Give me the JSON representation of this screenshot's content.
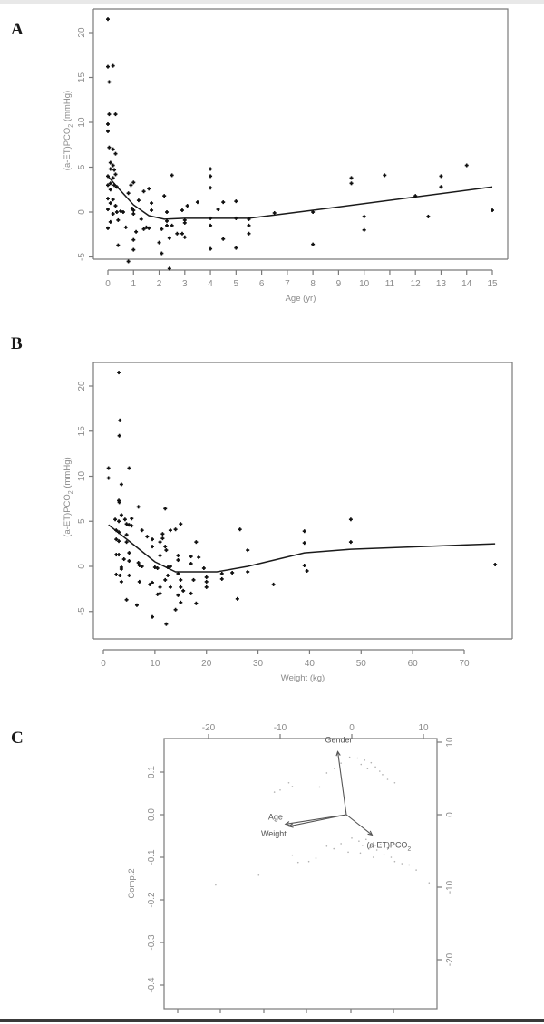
{
  "figure": {
    "panels": [
      "A",
      "B",
      "C"
    ]
  },
  "chart_data": [
    {
      "panel": "A",
      "type": "scatter",
      "xlabel": "Age (yr)",
      "ylabel": "(a-ET)PCO2 (mmHg)",
      "xlim": [
        0,
        15
      ],
      "ylim": [
        -6.5,
        21.5
      ],
      "xticks": [
        0,
        1,
        2,
        3,
        4,
        5,
        6,
        7,
        8,
        9,
        10,
        11,
        12,
        13,
        14,
        15
      ],
      "yticks": [
        -5,
        0,
        5,
        10,
        15,
        20
      ],
      "grid": false,
      "points": [
        [
          0.0,
          21.5
        ],
        [
          0.0,
          16.2
        ],
        [
          0.2,
          16.3
        ],
        [
          0.05,
          14.5
        ],
        [
          0.05,
          10.9
        ],
        [
          0.3,
          10.9
        ],
        [
          0.0,
          9.8
        ],
        [
          0.0,
          9.0
        ],
        [
          0.05,
          7.2
        ],
        [
          0.2,
          7.0
        ],
        [
          0.3,
          6.5
        ],
        [
          0.1,
          5.5
        ],
        [
          0.2,
          5.2
        ],
        [
          0.1,
          4.8
        ],
        [
          0.25,
          4.7
        ],
        [
          0.3,
          4.2
        ],
        [
          0.0,
          4.0
        ],
        [
          0.2,
          3.8
        ],
        [
          0.1,
          3.2
        ],
        [
          0.0,
          3.0
        ],
        [
          0.25,
          3.0
        ],
        [
          0.35,
          2.8
        ],
        [
          0.1,
          2.5
        ],
        [
          0.0,
          1.5
        ],
        [
          0.2,
          1.4
        ],
        [
          0.1,
          1.0
        ],
        [
          0.3,
          0.7
        ],
        [
          0.0,
          0.3
        ],
        [
          0.35,
          0.0
        ],
        [
          0.2,
          -0.2
        ],
        [
          0.5,
          0.1
        ],
        [
          0.6,
          0.0
        ],
        [
          0.4,
          -0.9
        ],
        [
          0.0,
          -1.8
        ],
        [
          0.1,
          -1.1
        ],
        [
          0.7,
          -1.7
        ],
        [
          0.4,
          -3.7
        ],
        [
          0.8,
          2.1
        ],
        [
          0.9,
          3.0
        ],
        [
          1.0,
          3.3
        ],
        [
          0.95,
          0.4
        ],
        [
          1.0,
          0.2
        ],
        [
          1.0,
          -0.2
        ],
        [
          1.1,
          -2.2
        ],
        [
          1.2,
          1.3
        ],
        [
          1.0,
          -3.1
        ],
        [
          1.0,
          -4.2
        ],
        [
          0.8,
          -5.5
        ],
        [
          1.3,
          -0.8
        ],
        [
          1.4,
          2.3
        ],
        [
          1.4,
          -1.9
        ],
        [
          1.6,
          2.6
        ],
        [
          1.7,
          1.0
        ],
        [
          1.7,
          0.2
        ],
        [
          1.6,
          -1.8
        ],
        [
          1.5,
          -1.7
        ],
        [
          2.0,
          -3.4
        ],
        [
          2.1,
          -1.9
        ],
        [
          2.1,
          -4.6
        ],
        [
          2.2,
          1.8
        ],
        [
          2.3,
          0.0
        ],
        [
          2.3,
          -1.0
        ],
        [
          2.3,
          -1.5
        ],
        [
          2.4,
          -2.9
        ],
        [
          2.4,
          -6.3
        ],
        [
          2.5,
          -1.5
        ],
        [
          2.5,
          4.1
        ],
        [
          2.7,
          -2.4
        ],
        [
          2.9,
          -2.4
        ],
        [
          2.9,
          0.2
        ],
        [
          3.0,
          -0.9
        ],
        [
          3.0,
          -1.2
        ],
        [
          3.0,
          -2.8
        ],
        [
          3.1,
          0.7
        ],
        [
          3.5,
          1.1
        ],
        [
          4.0,
          4.8
        ],
        [
          4.0,
          4.0
        ],
        [
          4.0,
          2.7
        ],
        [
          4.0,
          -0.7
        ],
        [
          4.0,
          -1.5
        ],
        [
          4.0,
          -4.1
        ],
        [
          4.3,
          0.3
        ],
        [
          4.5,
          1.1
        ],
        [
          4.5,
          -3.0
        ],
        [
          5.0,
          1.2
        ],
        [
          5.0,
          -0.7
        ],
        [
          5.0,
          -4.0
        ],
        [
          5.5,
          -0.8
        ],
        [
          5.5,
          -1.5
        ],
        [
          5.5,
          -2.4
        ],
        [
          6.5,
          -0.1
        ],
        [
          8.0,
          0.0
        ],
        [
          8.0,
          -3.6
        ],
        [
          9.5,
          3.8
        ],
        [
          9.5,
          3.2
        ],
        [
          10.0,
          -0.5
        ],
        [
          10.0,
          -2.0
        ],
        [
          10.8,
          4.1
        ],
        [
          12.0,
          1.8
        ],
        [
          12.5,
          -0.5
        ],
        [
          13.0,
          4.0
        ],
        [
          13.0,
          2.8
        ],
        [
          14.0,
          5.2
        ],
        [
          15.0,
          0.2
        ]
      ],
      "fit": [
        [
          0,
          4.0
        ],
        [
          0.3,
          3.0
        ],
        [
          1.0,
          0.8
        ],
        [
          1.6,
          -0.4
        ],
        [
          2.2,
          -0.8
        ],
        [
          3.0,
          -0.7
        ],
        [
          5.5,
          -0.7
        ],
        [
          8.0,
          0.2
        ],
        [
          15,
          2.8
        ]
      ]
    },
    {
      "panel": "B",
      "type": "scatter",
      "xlabel": "Weight (kg)",
      "ylabel": "(a-ET)PCO2 (mmHg)",
      "xlim": [
        0,
        76
      ],
      "ylim": [
        -6.5,
        21.5
      ],
      "xticks": [
        0,
        10,
        20,
        30,
        40,
        50,
        60,
        70
      ],
      "yticks": [
        -5,
        0,
        5,
        10,
        15,
        20
      ],
      "grid": false,
      "points": [
        [
          3.0,
          21.5
        ],
        [
          3.2,
          16.2
        ],
        [
          3.1,
          14.5
        ],
        [
          1.0,
          10.9
        ],
        [
          5.0,
          10.9
        ],
        [
          1.0,
          9.8
        ],
        [
          3.5,
          9.1
        ],
        [
          3.0,
          7.3
        ],
        [
          3.1,
          7.1
        ],
        [
          6.8,
          6.6
        ],
        [
          3.5,
          5.7
        ],
        [
          2.3,
          5.2
        ],
        [
          3.0,
          5.0
        ],
        [
          4.2,
          5.2
        ],
        [
          5.5,
          5.3
        ],
        [
          4.5,
          4.7
        ],
        [
          5.0,
          4.6
        ],
        [
          5.5,
          4.5
        ],
        [
          7.5,
          4.0
        ],
        [
          2.5,
          4.0
        ],
        [
          3.0,
          3.8
        ],
        [
          4.5,
          3.5
        ],
        [
          8.5,
          3.3
        ],
        [
          9.5,
          3.0
        ],
        [
          2.5,
          3.0
        ],
        [
          3.0,
          2.8
        ],
        [
          4.5,
          2.7
        ],
        [
          9.5,
          2.2
        ],
        [
          5.0,
          1.5
        ],
        [
          2.5,
          1.3
        ],
        [
          3.0,
          1.3
        ],
        [
          4.0,
          0.8
        ],
        [
          5.0,
          0.6
        ],
        [
          6.8,
          0.4
        ],
        [
          7.0,
          0.1
        ],
        [
          7.5,
          0.0
        ],
        [
          3.5,
          -0.1
        ],
        [
          3.5,
          -0.3
        ],
        [
          2.5,
          -0.9
        ],
        [
          3.2,
          -1.0
        ],
        [
          5.0,
          -1.0
        ],
        [
          7.0,
          -1.7
        ],
        [
          3.5,
          -1.7
        ],
        [
          4.5,
          -3.7
        ],
        [
          6.5,
          -4.3
        ],
        [
          9.5,
          -5.6
        ],
        [
          9.0,
          -2.0
        ],
        [
          9.5,
          -1.8
        ],
        [
          10.0,
          -0.1
        ],
        [
          10.5,
          -0.2
        ],
        [
          11.0,
          1.2
        ],
        [
          11.0,
          2.7
        ],
        [
          11.5,
          3.1
        ],
        [
          11.5,
          3.6
        ],
        [
          12.0,
          6.4
        ],
        [
          12.0,
          2.2
        ],
        [
          12.2,
          1.8
        ],
        [
          12.5,
          -0.1
        ],
        [
          12.5,
          -1.0
        ],
        [
          12.0,
          -1.5
        ],
        [
          11.0,
          -2.3
        ],
        [
          11.0,
          -3.0
        ],
        [
          10.5,
          -3.1
        ],
        [
          12.2,
          -6.4
        ],
        [
          13.0,
          -2.3
        ],
        [
          13.0,
          0.0
        ],
        [
          13.0,
          4.0
        ],
        [
          14.0,
          4.1
        ],
        [
          14.5,
          1.2
        ],
        [
          14.5,
          0.7
        ],
        [
          14.5,
          -0.8
        ],
        [
          15.0,
          -1.5
        ],
        [
          15.0,
          -2.3
        ],
        [
          14.5,
          -3.2
        ],
        [
          15.5,
          -2.7
        ],
        [
          15.0,
          -4.0
        ],
        [
          14.0,
          -4.8
        ],
        [
          15.0,
          4.7
        ],
        [
          17.0,
          0.3
        ],
        [
          17.0,
          1.1
        ],
        [
          17.5,
          -1.5
        ],
        [
          17.0,
          -3.0
        ],
        [
          18.0,
          -4.1
        ],
        [
          18.0,
          2.7
        ],
        [
          18.5,
          1.0
        ],
        [
          19.5,
          -0.2
        ],
        [
          20.0,
          -1.2
        ],
        [
          20.0,
          -1.7
        ],
        [
          20.0,
          -2.3
        ],
        [
          23.0,
          -0.8
        ],
        [
          23.0,
          -1.4
        ],
        [
          25.0,
          -0.7
        ],
        [
          26.0,
          -3.6
        ],
        [
          26.5,
          4.1
        ],
        [
          28.0,
          1.8
        ],
        [
          28.0,
          -0.6
        ],
        [
          33.0,
          -2.0
        ],
        [
          39.0,
          3.9
        ],
        [
          39.0,
          2.6
        ],
        [
          39.0,
          0.1
        ],
        [
          39.5,
          -0.5
        ],
        [
          48.0,
          5.2
        ],
        [
          48.0,
          2.7
        ],
        [
          76.0,
          0.2
        ]
      ],
      "fit": [
        [
          1,
          4.6
        ],
        [
          5,
          2.8
        ],
        [
          10,
          0.5
        ],
        [
          14,
          -0.6
        ],
        [
          22,
          -0.6
        ],
        [
          28,
          0.0
        ],
        [
          39,
          1.5
        ],
        [
          48,
          1.9
        ],
        [
          76,
          2.5
        ]
      ]
    },
    {
      "panel": "C",
      "type": "scatter",
      "subtype": "biplot",
      "ylabel": "Comp.2",
      "xlim_scores": [
        -0.2,
        0.2
      ],
      "ylim_scores": [
        -0.43,
        0.18
      ],
      "yticks_left": [
        -0.4,
        -0.3,
        -0.2,
        -0.1,
        0.0,
        0.1
      ],
      "xticks_top": [
        -20,
        -10,
        0,
        10
      ],
      "yticks_right": [
        10,
        0,
        -10,
        -20
      ],
      "grid": false,
      "loadings": [
        {
          "label": "Gender",
          "x": -1.2,
          "y": 8.7
        },
        {
          "label": "Age",
          "x": -8.5,
          "y": -1.3
        },
        {
          "label": "Weight",
          "x": -8.0,
          "y": -1.6
        },
        {
          "label": "(a-ET)PCO2",
          "x": 3.6,
          "y": -2.8
        }
      ],
      "points": [
        [
          -0.003,
          0.135
        ],
        [
          0.008,
          0.133
        ],
        [
          0.018,
          0.128
        ],
        [
          0.027,
          0.122
        ],
        [
          -0.015,
          0.121
        ],
        [
          0.033,
          0.112
        ],
        [
          0.039,
          0.102
        ],
        [
          0.043,
          0.094
        ],
        [
          -0.024,
          0.108
        ],
        [
          -0.035,
          0.098
        ],
        [
          -0.045,
          0.065
        ],
        [
          -0.088,
          0.075
        ],
        [
          -0.083,
          0.066
        ],
        [
          -0.1,
          0.058
        ],
        [
          -0.108,
          0.053
        ],
        [
          0.013,
          0.118
        ],
        [
          0.022,
          0.108
        ],
        [
          0.05,
          0.083
        ],
        [
          0.06,
          0.075
        ],
        [
          0.0,
          -0.055
        ],
        [
          0.01,
          -0.062
        ],
        [
          0.02,
          -0.058
        ],
        [
          0.03,
          -0.066
        ],
        [
          0.04,
          -0.07
        ],
        [
          0.05,
          -0.078
        ],
        [
          0.015,
          -0.072
        ],
        [
          0.025,
          -0.078
        ],
        [
          0.035,
          -0.083
        ],
        [
          -0.015,
          -0.068
        ],
        [
          -0.025,
          -0.08
        ],
        [
          -0.035,
          -0.074
        ],
        [
          0.045,
          -0.094
        ],
        [
          0.055,
          -0.1
        ],
        [
          0.06,
          -0.11
        ],
        [
          0.07,
          -0.115
        ],
        [
          -0.05,
          -0.102
        ],
        [
          -0.06,
          -0.11
        ],
        [
          -0.075,
          -0.112
        ],
        [
          -0.083,
          -0.095
        ],
        [
          -0.13,
          -0.142
        ],
        [
          -0.19,
          -0.165
        ],
        [
          0.08,
          -0.118
        ],
        [
          0.09,
          -0.13
        ],
        [
          0.108,
          -0.16
        ],
        [
          0.012,
          -0.09
        ],
        [
          -0.005,
          -0.088
        ],
        [
          0.03,
          -0.1
        ]
      ]
    }
  ]
}
